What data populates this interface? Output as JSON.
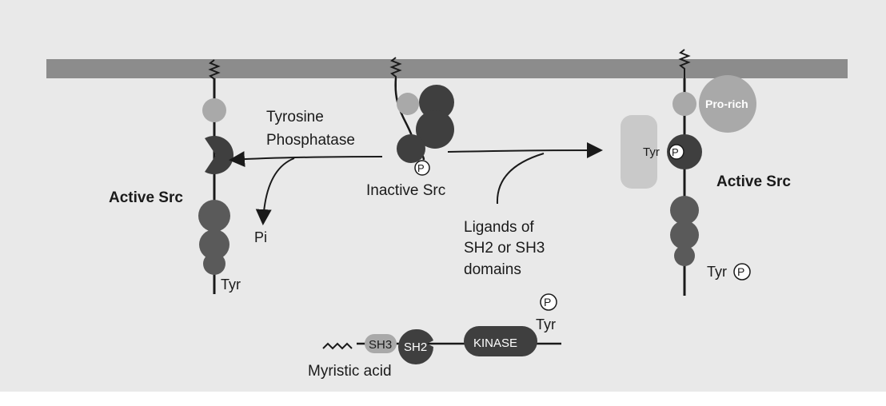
{
  "labels": {
    "tyrosine_phosphatase_line1": "Tyrosine",
    "tyrosine_phosphatase_line2": "Phosphatase",
    "active_src_left": "Active Src",
    "active_src_right": "Active Src",
    "inactive_src": "Inactive Src",
    "pi": "Pi",
    "tyr_left": "Tyr",
    "ligands_line1": "Ligands of",
    "ligands_line2": "SH2 or SH3",
    "ligands_line3": "domains",
    "pro_rich": "Pro-rich",
    "tyr_right_upper": "Tyr",
    "tyr_right_lower": "Tyr",
    "phospho_symbol": "P",
    "myristic_acid": "Myristic acid",
    "domain_tyr": "Tyr",
    "domain_sh3": "SH3",
    "domain_sh2": "SH2",
    "domain_kinase": "KINASE"
  },
  "colors": {
    "membrane": "#8c8c8c",
    "background": "#e9e9e9",
    "dark_domain": "#3f3f3f",
    "mid_domain": "#6a6a6a",
    "light_domain": "#a9a9a9",
    "pale_domain": "#c9c9c9"
  }
}
